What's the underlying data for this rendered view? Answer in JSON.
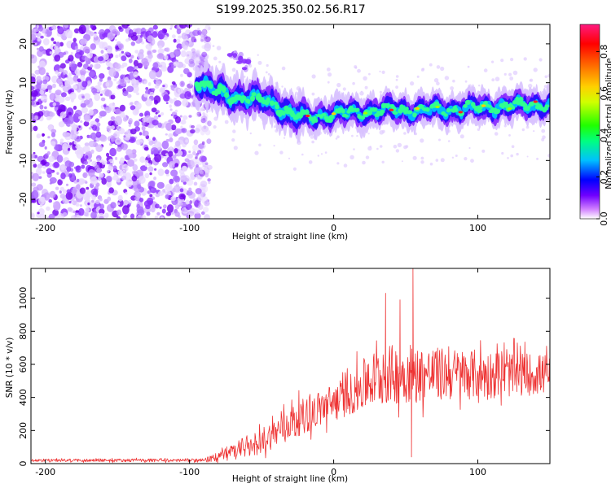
{
  "title": "S199.2025.350.02.56.R17",
  "chart_data": [
    {
      "type": "heatmap",
      "name": "spectrogram",
      "xlabel": "Height of straight line (km)",
      "ylabel": "Frequency (Hz)",
      "xlim": [
        -210,
        150
      ],
      "ylim": [
        -25,
        25
      ],
      "xticks": [
        -200,
        -100,
        0,
        100
      ],
      "yticks": [
        -20,
        -10,
        0,
        10,
        20
      ],
      "colorbar": {
        "label": "Normalized spectral amplitude",
        "range": [
          0,
          0.93
        ],
        "ticks": [
          0.0,
          0.2,
          0.4,
          0.6,
          0.8
        ],
        "tick_labels": [
          "0.0",
          "0.2",
          "0.4",
          "0.6",
          "0.8"
        ]
      },
      "ridge": {
        "x": [
          -95,
          -90,
          -80,
          -70,
          -60,
          -50,
          -40,
          -30,
          -20,
          -10,
          0,
          20,
          40,
          60,
          80,
          100,
          120,
          150
        ],
        "freq": [
          10.5,
          9,
          7.5,
          6.5,
          6,
          5.5,
          4.5,
          2,
          1,
          1.5,
          2,
          2.5,
          3,
          3,
          3,
          3.5,
          4,
          4.5
        ]
      },
      "side_branch": {
        "x": [
          -70,
          -65,
          -60
        ],
        "freq": [
          17,
          16,
          14.5
        ]
      },
      "noise_region_x": [
        -210,
        -90
      ]
    },
    {
      "type": "line",
      "name": "snr",
      "xlabel": "Height of straight line (km)",
      "ylabel": "SNR (10 * v/v)",
      "xlim": [
        -210,
        150
      ],
      "ylim": [
        0,
        1180
      ],
      "xticks": [
        -200,
        -100,
        0,
        100
      ],
      "yticks": [
        0,
        200,
        400,
        600,
        800,
        1000
      ],
      "color": "#ee3333",
      "envelope": {
        "x": [
          -210,
          -90,
          -80,
          -70,
          -60,
          -50,
          -40,
          -30,
          -20,
          -10,
          0,
          10,
          20,
          30,
          40,
          60,
          80,
          100,
          120,
          150
        ],
        "mean": [
          20,
          20,
          40,
          70,
          100,
          140,
          190,
          250,
          290,
          330,
          370,
          410,
          470,
          520,
          540,
          540,
          540,
          540,
          540,
          540
        ],
        "amp": [
          8,
          10,
          30,
          50,
          70,
          80,
          90,
          100,
          110,
          110,
          120,
          120,
          160,
          180,
          180,
          170,
          160,
          150,
          140,
          120
        ]
      },
      "spikes": [
        {
          "x": 55,
          "y": 1180
        },
        {
          "x": 54,
          "y": 40
        },
        {
          "x": 36,
          "y": 1030
        },
        {
          "x": 46,
          "y": 990
        }
      ]
    }
  ]
}
